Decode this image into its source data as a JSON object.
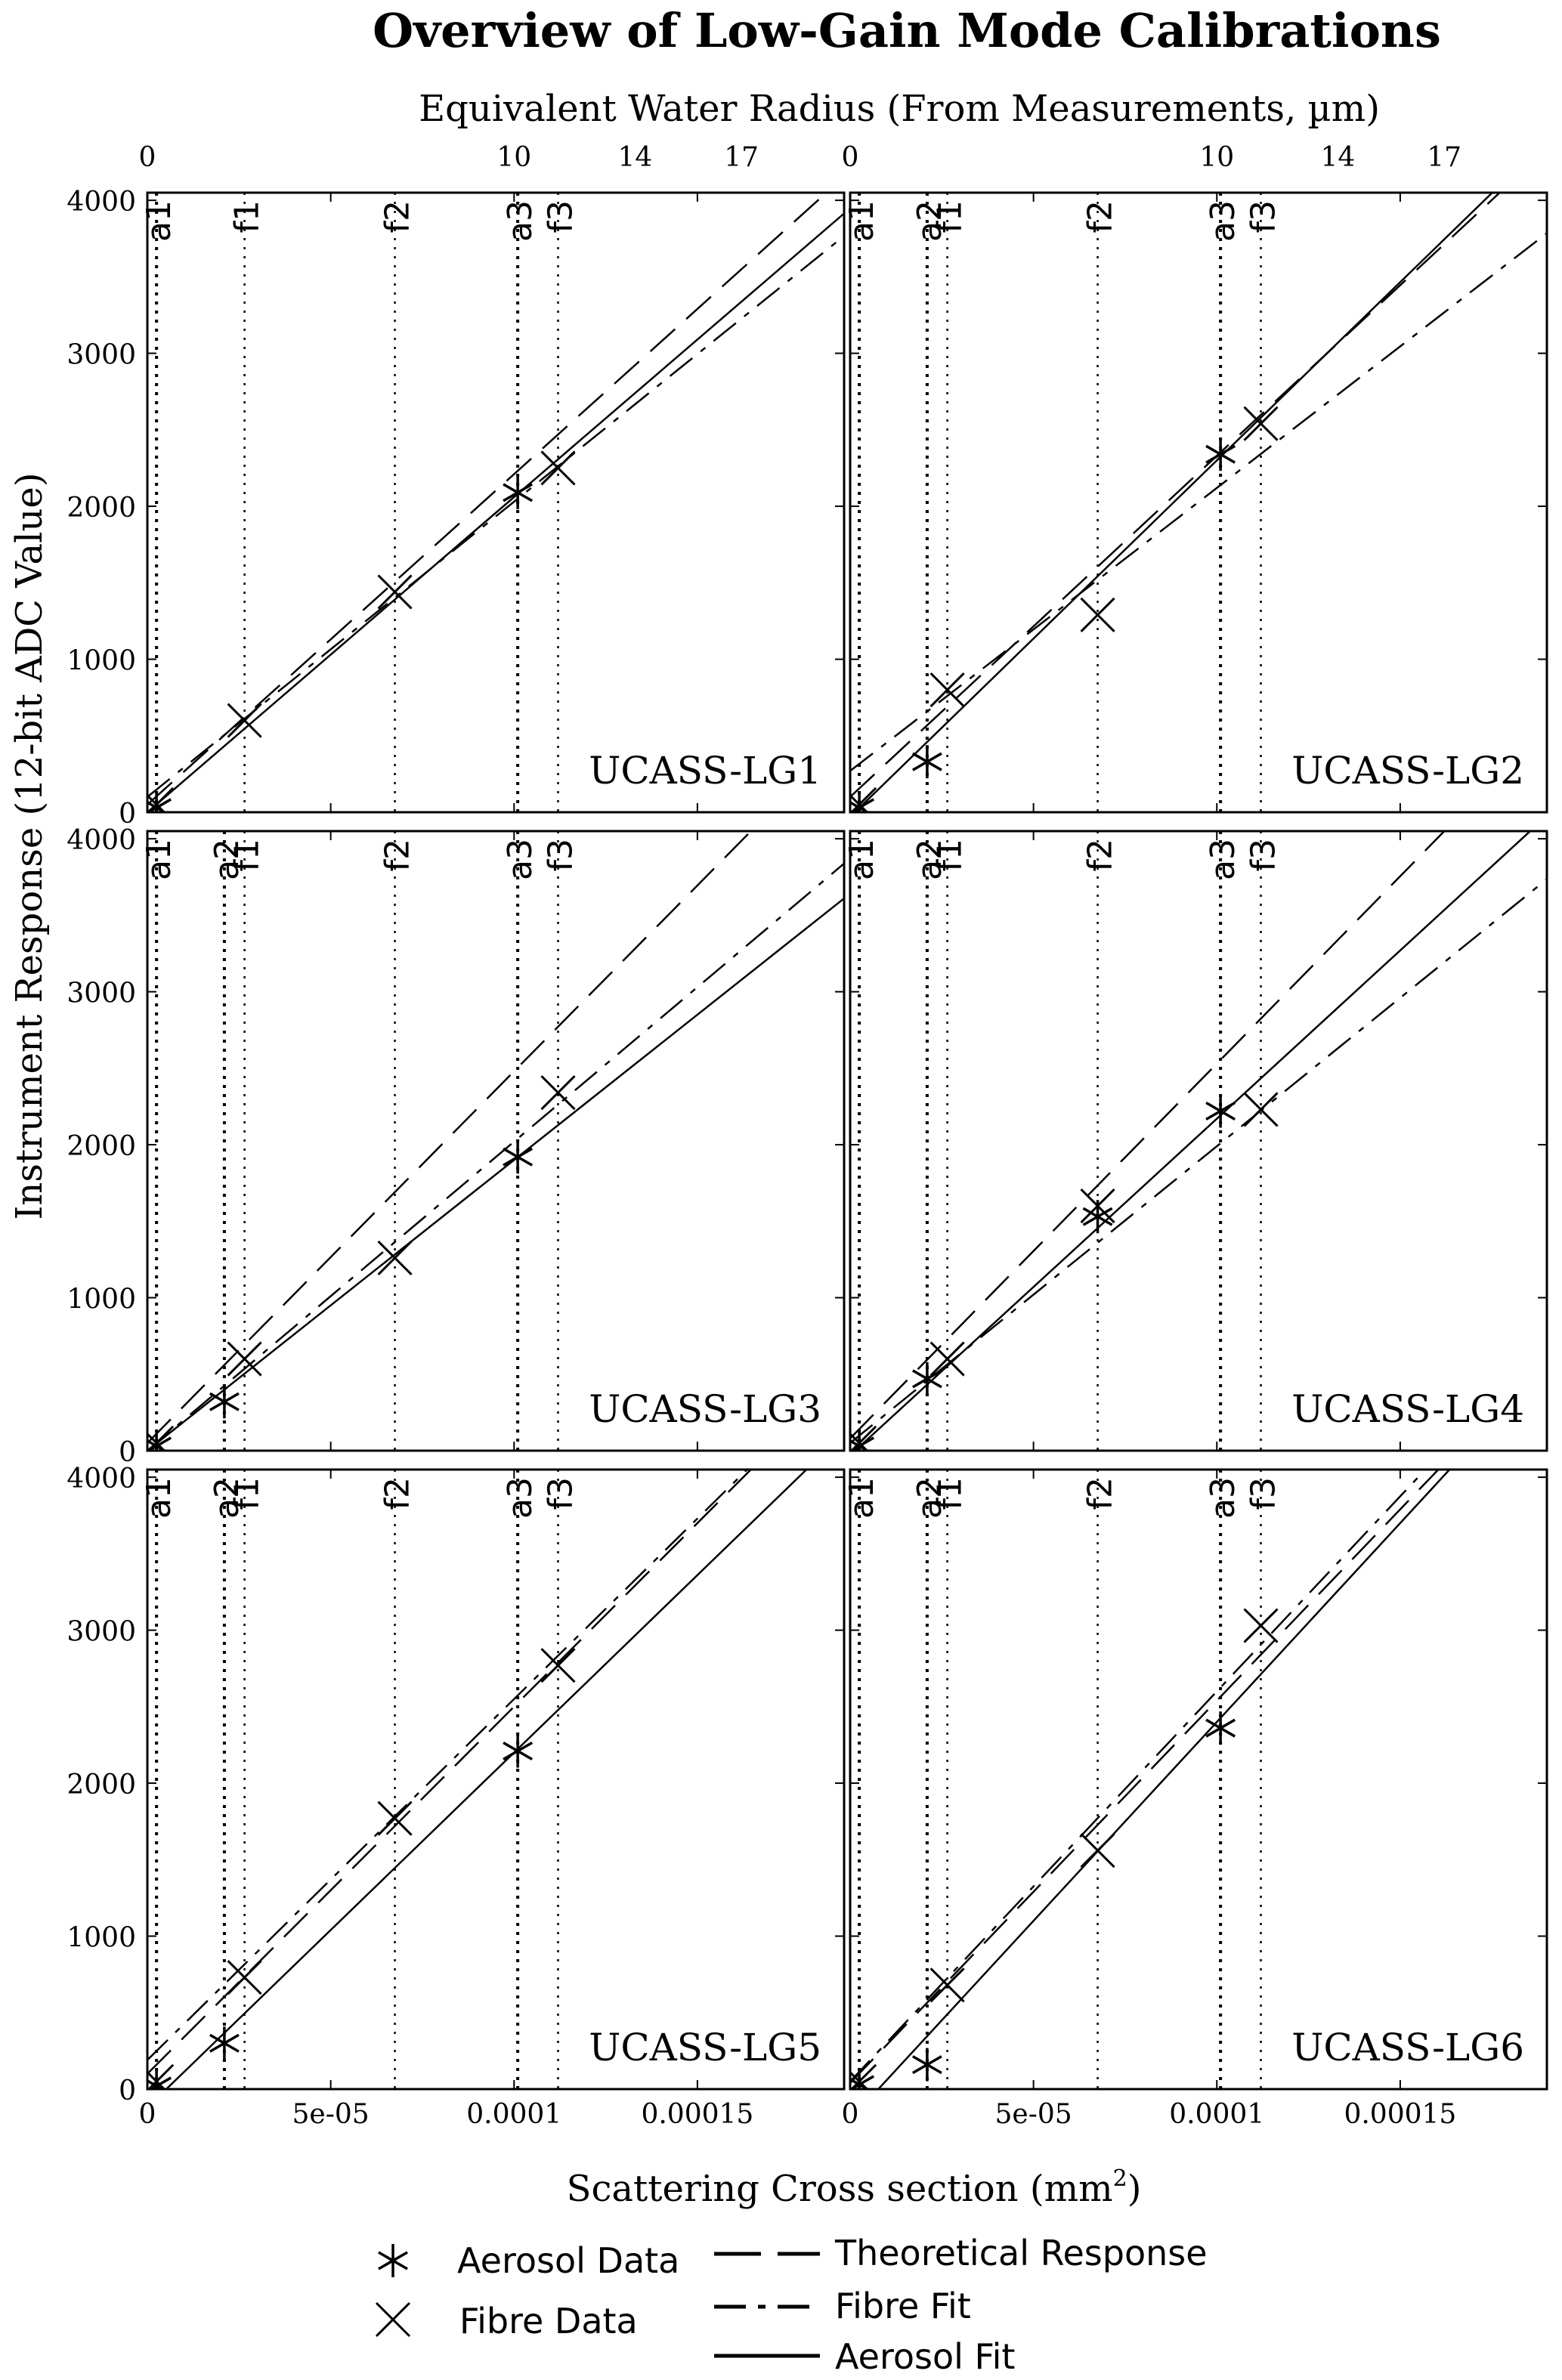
{
  "title": "Overview of Low-Gain Mode Calibrations",
  "top_axis": {
    "label": "Equivalent Water Radius (From Measurements, µm)",
    "ticks": [
      {
        "label": "0",
        "x": 0
      },
      {
        "label": "10",
        "x": 0.0001
      },
      {
        "label": "14",
        "x": 0.000133
      },
      {
        "label": "17",
        "x": 0.000162
      }
    ]
  },
  "x_axis": {
    "label_main": "Scattering Cross section (mm",
    "label_sup": "2",
    "label_end": ")",
    "ticks": [
      {
        "label": "0",
        "x": 0
      },
      {
        "label": "5e-05",
        "x": 5e-05
      },
      {
        "label": "0.0001",
        "x": 0.0001
      },
      {
        "label": "0.00015",
        "x": 0.00015
      }
    ]
  },
  "y_axis": {
    "label": "Instrument Response (12-bit ADC Value)",
    "ticks": [
      0,
      1000,
      2000,
      3000,
      4000
    ]
  },
  "legend": {
    "aerosol_data": "Aerosol Data",
    "fibre_data": "Fibre Data",
    "theoretical": "Theoretical Response",
    "fibre_fit": "Fibre Fit",
    "aerosol_fit": "Aerosol Fit"
  },
  "chart_data": {
    "type": "scatter",
    "xlim": [
      0,
      0.00019
    ],
    "ylim": [
      0,
      4050
    ],
    "grid": false,
    "legend_position": "bottom",
    "panels": [
      {
        "name": "UCASS-LG1",
        "vlines": [
          {
            "label": "a1",
            "x": 2.5e-06
          },
          {
            "label": "f1",
            "x": 2.65e-05
          },
          {
            "label": "f2",
            "x": 6.75e-05
          },
          {
            "label": "a3",
            "x": 0.000101
          },
          {
            "label": "f3",
            "x": 0.000112
          }
        ],
        "aerosol_data": [
          [
            2.5e-06,
            30
          ],
          [
            0.000101,
            2090
          ]
        ],
        "fibre_data": [
          [
            2.5e-06,
            50
          ],
          [
            2.65e-05,
            600
          ],
          [
            6.75e-05,
            1440
          ],
          [
            0.000112,
            2250
          ]
        ],
        "theoretical": {
          "slope": 21600000,
          "intercept": 50
        },
        "fibre_fit": {
          "slope": 19300000,
          "intercept": 100
        },
        "aerosol_fit": {
          "slope": 20600000,
          "intercept": 0
        }
      },
      {
        "name": "UCASS-LG2",
        "vlines": [
          {
            "label": "a1",
            "x": 2.5e-06
          },
          {
            "label": "a2",
            "x": 2.1e-05
          },
          {
            "label": "f1",
            "x": 2.65e-05
          },
          {
            "label": "f2",
            "x": 6.75e-05
          },
          {
            "label": "a3",
            "x": 0.000101
          },
          {
            "label": "f3",
            "x": 0.000112
          }
        ],
        "aerosol_data": [
          [
            2.5e-06,
            30
          ],
          [
            2.1e-05,
            330
          ],
          [
            0.000101,
            2340
          ]
        ],
        "fibre_data": [
          [
            2.5e-06,
            50
          ],
          [
            2.65e-05,
            800
          ],
          [
            6.75e-05,
            1290
          ],
          [
            0.000112,
            2540
          ]
        ],
        "theoretical": {
          "slope": 22300000,
          "intercept": 100
        },
        "fibre_fit": {
          "slope": 18500000,
          "intercept": 270
        },
        "aerosol_fit": {
          "slope": 23300000,
          "intercept": -30
        }
      },
      {
        "name": "UCASS-LG3",
        "vlines": [
          {
            "label": "a1",
            "x": 2.5e-06
          },
          {
            "label": "a2",
            "x": 2.1e-05
          },
          {
            "label": "f1",
            "x": 2.65e-05
          },
          {
            "label": "f2",
            "x": 6.75e-05
          },
          {
            "label": "a3",
            "x": 0.000101
          },
          {
            "label": "f3",
            "x": 0.000112
          }
        ],
        "aerosol_data": [
          [
            2.5e-06,
            30
          ],
          [
            2.1e-05,
            320
          ],
          [
            0.000101,
            1920
          ]
        ],
        "fibre_data": [
          [
            2.5e-06,
            50
          ],
          [
            2.65e-05,
            600
          ],
          [
            6.75e-05,
            1260
          ],
          [
            0.000112,
            2340
          ]
        ],
        "theoretical": {
          "slope": 24300000,
          "intercept": 50
        },
        "fibre_fit": {
          "slope": 20200000,
          "intercept": 0
        },
        "aerosol_fit": {
          "slope": 19000000,
          "intercept": 0
        }
      },
      {
        "name": "UCASS-LG4",
        "vlines": [
          {
            "label": "a1",
            "x": 2.5e-06
          },
          {
            "label": "a2",
            "x": 2.1e-05
          },
          {
            "label": "f1",
            "x": 2.65e-05
          },
          {
            "label": "f2",
            "x": 6.75e-05
          },
          {
            "label": "a3",
            "x": 0.000101
          },
          {
            "label": "f3",
            "x": 0.000112
          }
        ],
        "aerosol_data": [
          [
            2.5e-06,
            30
          ],
          [
            2.1e-05,
            470
          ],
          [
            6.75e-05,
            1530
          ],
          [
            0.000101,
            2220
          ]
        ],
        "fibre_data": [
          [
            2.5e-06,
            50
          ],
          [
            2.65e-05,
            600
          ],
          [
            6.75e-05,
            1600
          ],
          [
            0.000112,
            2230
          ]
        ],
        "theoretical": {
          "slope": 24500000,
          "intercept": 80
        },
        "fibre_fit": {
          "slope": 19400000,
          "intercept": 50
        },
        "aerosol_fit": {
          "slope": 22000000,
          "intercept": -30
        }
      },
      {
        "name": "UCASS-LG5",
        "vlines": [
          {
            "label": "a1",
            "x": 2.5e-06
          },
          {
            "label": "a2",
            "x": 2.1e-05
          },
          {
            "label": "f1",
            "x": 2.65e-05
          },
          {
            "label": "f2",
            "x": 6.75e-05
          },
          {
            "label": "a3",
            "x": 0.000101
          },
          {
            "label": "f3",
            "x": 0.000112
          }
        ],
        "aerosol_data": [
          [
            2.5e-06,
            20
          ],
          [
            2.1e-05,
            300
          ],
          [
            0.000101,
            2210
          ]
        ],
        "fibre_data": [
          [
            2.5e-06,
            50
          ],
          [
            2.65e-05,
            730
          ],
          [
            6.75e-05,
            1770
          ],
          [
            0.000112,
            2770
          ]
        ],
        "theoretical": {
          "slope": 24000000,
          "intercept": 100
        },
        "fibre_fit": {
          "slope": 23600000,
          "intercept": 190
        },
        "aerosol_fit": {
          "slope": 23200000,
          "intercept": -120
        }
      },
      {
        "name": "UCASS-LG6",
        "vlines": [
          {
            "label": "a1",
            "x": 2.5e-06
          },
          {
            "label": "a2",
            "x": 2.1e-05
          },
          {
            "label": "f1",
            "x": 2.65e-05
          },
          {
            "label": "f2",
            "x": 6.75e-05
          },
          {
            "label": "a3",
            "x": 0.000101
          },
          {
            "label": "f3",
            "x": 0.000112
          }
        ],
        "aerosol_data": [
          [
            2.5e-06,
            30
          ],
          [
            2.1e-05,
            160
          ],
          [
            0.000101,
            2360
          ]
        ],
        "fibre_data": [
          [
            2.5e-06,
            50
          ],
          [
            2.65e-05,
            680
          ],
          [
            6.75e-05,
            1560
          ],
          [
            0.000112,
            3030
          ]
        ],
        "theoretical": {
          "slope": 25000000,
          "intercept": 40
        },
        "fibre_fit": {
          "slope": 25500000,
          "intercept": 50
        },
        "aerosol_fit": {
          "slope": 26000000,
          "intercept": -200
        }
      }
    ]
  }
}
